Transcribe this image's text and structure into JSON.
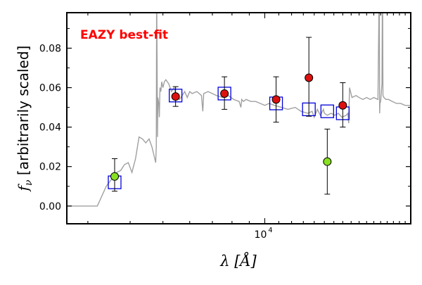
{
  "chart_data": {
    "type": "scatter",
    "title": "",
    "xlabel": "λ [Å]",
    "ylabel": "f_ν [arbitrarily scaled]",
    "x_scale": "log",
    "xlim": [
      2600,
      27000
    ],
    "ylim": [
      -0.009,
      0.098
    ],
    "grid": false,
    "annotation": {
      "text": "EAZY best-fit",
      "color": "#ff0000"
    },
    "x_ticks": [
      {
        "value": 10000,
        "base": "10",
        "exp": "4"
      }
    ],
    "y_ticks": [
      {
        "value": 0.0,
        "label": "0.00"
      },
      {
        "value": 0.02,
        "label": "0.02"
      },
      {
        "value": 0.04,
        "label": "0.04"
      },
      {
        "value": 0.06,
        "label": "0.06"
      },
      {
        "value": 0.08,
        "label": "0.08"
      }
    ],
    "colors": {
      "sed_line": "#a0a0a0",
      "model_box": "#0000dd",
      "detected": "#dd1010",
      "outlier": "#88e020",
      "errorbar": "#000000",
      "axes": "#000000"
    },
    "series": [
      {
        "kind": "line",
        "x": [
          2600,
          3200,
          3400,
          3650,
          3750,
          3850,
          3950,
          4050,
          4150,
          4250,
          4350,
          4450,
          4550,
          4640,
          4700,
          4760,
          4780,
          4790,
          4795,
          4820,
          4830,
          4860,
          4880,
          4900,
          4930,
          4960,
          5000,
          5050,
          5100,
          5150,
          5200,
          5300,
          5400,
          5450,
          5500,
          5600,
          5700,
          5800,
          5900,
          6000,
          6100,
          6300,
          6500,
          6560,
          6600,
          6800,
          7000,
          7200,
          7500,
          7800,
          8100,
          8400,
          8500,
          8550,
          8650,
          8800,
          9100,
          9400,
          9700,
          10000,
          10300,
          10700,
          11200,
          11700,
          12300,
          12800,
          13400,
          13800,
          14000,
          14300,
          14600,
          14800,
          14900,
          15000,
          15300,
          15700,
          16100,
          16500,
          16900,
          17400,
          17600,
          17700,
          17800,
          18100,
          18600,
          19000,
          19500,
          20000,
          20500,
          21000,
          21600,
          21750,
          21800,
          21850,
          21900,
          22000,
          22200,
          22250,
          22300,
          22350,
          22500,
          22800,
          23200,
          23800,
          24500,
          25200,
          26000,
          27000
        ],
        "y": [
          0.0,
          0.0,
          0.01,
          0.017,
          0.018,
          0.021,
          0.022,
          0.017,
          0.024,
          0.035,
          0.034,
          0.032,
          0.034,
          0.03,
          0.026,
          0.022,
          0.03,
          0.1,
          0.1,
          0.035,
          0.055,
          0.052,
          0.045,
          0.06,
          0.058,
          0.063,
          0.06,
          0.063,
          0.064,
          0.063,
          0.062,
          0.058,
          0.06,
          0.056,
          0.055,
          0.054,
          0.056,
          0.058,
          0.055,
          0.058,
          0.057,
          0.058,
          0.056,
          0.048,
          0.057,
          0.058,
          0.057,
          0.056,
          0.055,
          0.056,
          0.054,
          0.053,
          0.05,
          0.054,
          0.053,
          0.054,
          0.053,
          0.053,
          0.052,
          0.051,
          0.052,
          0.051,
          0.05,
          0.049,
          0.05,
          0.048,
          0.047,
          0.048,
          0.045,
          0.049,
          0.046,
          0.048,
          0.049,
          0.047,
          0.046,
          0.047,
          0.046,
          0.047,
          0.045,
          0.046,
          0.047,
          0.042,
          0.06,
          0.055,
          0.056,
          0.055,
          0.054,
          0.055,
          0.054,
          0.055,
          0.054,
          0.1,
          0.1,
          0.047,
          0.052,
          0.053,
          0.062,
          0.1,
          0.1,
          0.056,
          0.055,
          0.054,
          0.054,
          0.053,
          0.052,
          0.052,
          0.051,
          0.051
        ]
      },
      {
        "kind": "model_boxes",
        "x": [
          3600,
          5450,
          7600,
          10800,
          13500,
          15300,
          17000
        ],
        "y": [
          0.012,
          0.056,
          0.057,
          0.052,
          0.049,
          0.048,
          0.047
        ]
      },
      {
        "kind": "points",
        "x": [
          3600,
          5450,
          7600,
          10800,
          13500,
          15300,
          17000
        ],
        "y": [
          0.015,
          0.0555,
          0.057,
          0.054,
          0.065,
          0.0225,
          0.051
        ],
        "yerr_low": [
          0.0075,
          0.005,
          0.008,
          0.0115,
          0.0195,
          0.0165,
          0.011
        ],
        "yerr_high": [
          0.009,
          0.005,
          0.0085,
          0.0115,
          0.0205,
          0.0165,
          0.0115
        ],
        "outlier": [
          true,
          false,
          false,
          false,
          false,
          true,
          false
        ]
      }
    ]
  }
}
